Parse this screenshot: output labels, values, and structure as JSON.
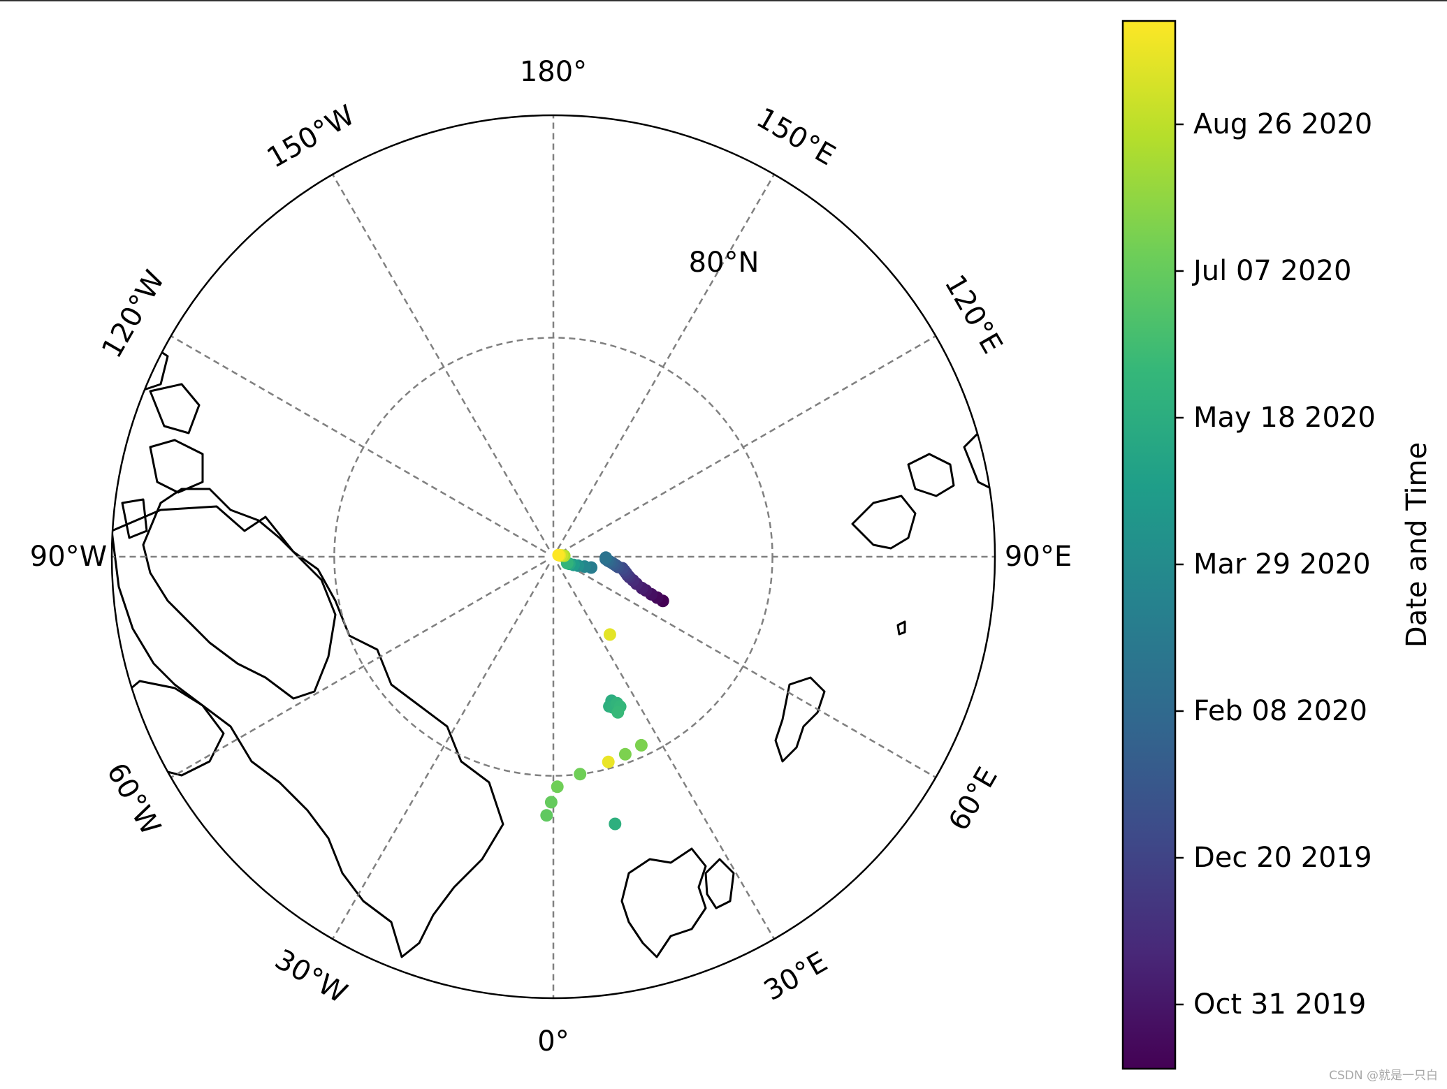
{
  "chart_data": {
    "type": "scatter",
    "projection": "north polar stereographic",
    "grid": true,
    "meridian_labels": [
      {
        "lon": 0,
        "text": "0°"
      },
      {
        "lon": 30,
        "text": "30°E"
      },
      {
        "lon": 60,
        "text": "60°E"
      },
      {
        "lon": 90,
        "text": "90°E"
      },
      {
        "lon": 120,
        "text": "120°E"
      },
      {
        "lon": 150,
        "text": "150°E"
      },
      {
        "lon": 180,
        "text": "180°"
      },
      {
        "lon": -150,
        "text": "150°W"
      },
      {
        "lon": -120,
        "text": "120°W"
      },
      {
        "lon": -90,
        "text": "90°W"
      },
      {
        "lon": -60,
        "text": "60°W"
      },
      {
        "lon": -30,
        "text": "30°W"
      }
    ],
    "parallel_labels": [
      {
        "lat": 80,
        "text": "80°N"
      }
    ],
    "lat_range": [
      70,
      90
    ],
    "colorbar": {
      "label": "Date and Time",
      "colormap": "viridis",
      "ticks": [
        "Oct 31 2019",
        "Dec 20 2019",
        "Feb 08 2020",
        "Mar 29 2020",
        "May 18 2020",
        "Jul 07 2020",
        "Aug 26 2020"
      ],
      "colors": [
        "#440154",
        "#482878",
        "#3e4a89",
        "#31688e",
        "#26828e",
        "#1f9e89",
        "#35b779",
        "#6ece58",
        "#b5de2b",
        "#fde725"
      ]
    },
    "series": [
      {
        "points": [
          [
            84.6,
            68.0,
            0.0
          ],
          [
            84.9,
            68.5,
            0.02
          ],
          [
            85.2,
            69.0,
            0.04
          ],
          [
            85.5,
            70.0,
            0.06
          ],
          [
            85.7,
            70.5,
            0.08
          ],
          [
            86.0,
            72.0,
            0.1
          ],
          [
            86.2,
            73.5,
            0.12
          ],
          [
            86.4,
            75.0,
            0.14
          ],
          [
            86.5,
            76.0,
            0.16
          ],
          [
            86.6,
            77.5,
            0.18
          ],
          [
            86.7,
            79.0,
            0.2
          ],
          [
            86.8,
            80.5,
            0.22
          ],
          [
            87.0,
            81.0,
            0.24
          ],
          [
            87.1,
            82.0,
            0.26
          ],
          [
            87.2,
            83.0,
            0.28
          ],
          [
            87.3,
            84.0,
            0.3
          ],
          [
            87.4,
            85.0,
            0.32
          ],
          [
            87.5,
            86.0,
            0.34
          ],
          [
            87.6,
            87.5,
            0.36
          ],
          [
            87.6,
            89.0,
            0.38
          ]
        ]
      },
      {
        "points": [
          [
            88.2,
            74.0,
            0.42
          ],
          [
            88.5,
            72.5,
            0.46
          ],
          [
            88.8,
            70.0,
            0.5
          ],
          [
            89.0,
            68.0,
            0.55
          ],
          [
            89.2,
            66.0,
            0.6
          ],
          [
            89.3,
            65.0,
            0.65
          ]
        ]
      },
      {
        "points": [
          [
            89.5,
            95.0,
            0.88
          ],
          [
            89.6,
            98.0,
            0.92
          ],
          [
            89.7,
            102.0,
            0.96
          ],
          [
            89.75,
            108.0,
            1.0
          ]
        ]
      },
      {
        "points": [
          [
            85.6,
            36.0,
            0.96
          ]
        ]
      },
      {
        "points": [
          [
            82.9,
            22.0,
            0.62
          ],
          [
            82.7,
            20.5,
            0.63
          ],
          [
            82.6,
            21.5,
            0.64
          ],
          [
            82.7,
            23.5,
            0.65
          ],
          [
            82.5,
            24.0,
            0.66
          ],
          [
            82.3,
            22.5,
            0.67
          ]
        ]
      },
      {
        "points": [
          [
            80.3,
            15.0,
            0.97
          ],
          [
            80.4,
            20.0,
            0.8
          ],
          [
            80.5,
            25.0,
            0.8
          ],
          [
            80.0,
            7.0,
            0.78
          ],
          [
            79.5,
            1.0,
            0.78
          ],
          [
            78.8,
            -0.5,
            0.76
          ],
          [
            78.2,
            -1.5,
            0.75
          ]
        ]
      },
      {
        "points": [
          [
            77.5,
            13.0,
            0.63
          ]
        ]
      }
    ]
  },
  "watermark": "CSDN @就是一只白"
}
